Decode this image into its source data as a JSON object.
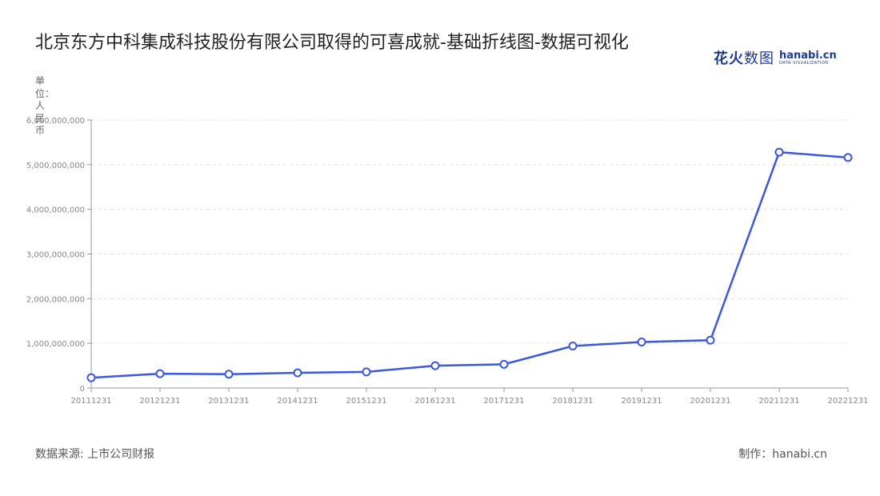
{
  "title": "北京东方中科集成科技股份有限公司取得的可喜成就-基础折线图-数据可视化",
  "logo": {
    "cn": "花火",
    "cn_thin": "数图",
    "en": "hanabi.cn",
    "en_sub": "DATA VISUALIZATION"
  },
  "source": "数据来源: 上市公司财报",
  "maker": "制作：hanabi.cn",
  "colors": {
    "line": "#3b57e0",
    "grid": "#e0e0e0",
    "axis": "#999999"
  },
  "chart_data": {
    "type": "line",
    "title": "北京东方中科集成科技股份有限公司取得的可喜成就-基础折线图-数据可视化",
    "ylabel": "单位：人民币",
    "xlabel": "",
    "categories": [
      "20111231",
      "20121231",
      "20131231",
      "20141231",
      "20151231",
      "20161231",
      "20171231",
      "20181231",
      "20191231",
      "20201231",
      "20211231",
      "20221231"
    ],
    "series": [
      {
        "values": [
          230000000,
          320000000,
          310000000,
          340000000,
          360000000,
          500000000,
          530000000,
          940000000,
          1030000000,
          1070000000,
          5280000000,
          5160000000
        ]
      }
    ],
    "ylim": [
      0,
      6000000000
    ],
    "yticks": [
      0,
      1000000000,
      2000000000,
      3000000000,
      4000000000,
      5000000000,
      6000000000
    ],
    "ytick_labels": [
      "0",
      "1,000,000,000",
      "2,000,000,000",
      "3,000,000,000",
      "4,000,000,000",
      "5,000,000,000",
      "6,000,000,000"
    ],
    "grid": true,
    "legend": "none"
  }
}
